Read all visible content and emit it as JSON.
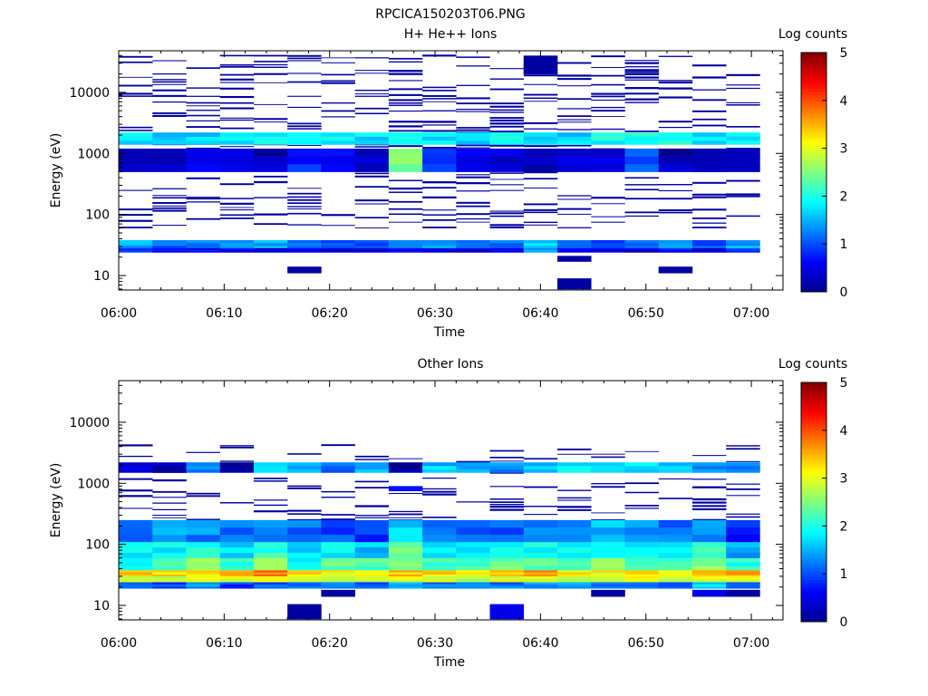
{
  "figure_title": "RPCICA150203T06.PNG",
  "colors": {
    "jet": [
      "#00008f",
      "#0000ff",
      "#0080ff",
      "#00ffff",
      "#80ff80",
      "#ffff00",
      "#ff8000",
      "#ff0000",
      "#800000"
    ]
  },
  "chart_data": [
    {
      "type": "heatmap",
      "title": "H+ He++ Ions",
      "xlabel": "Time",
      "ylabel": "Energy (eV)",
      "x_ticks": [
        "06:00",
        "06:10",
        "06:20",
        "06:30",
        "06:40",
        "06:50",
        "07:00"
      ],
      "x_range_minutes": [
        0,
        63
      ],
      "y_scale": "log",
      "y_range_eV": [
        5.8,
        48000
      ],
      "y_ticks": [
        {
          "value": 10,
          "label": "10"
        },
        {
          "value": 100,
          "label": "100"
        },
        {
          "value": 1000,
          "label": "1000"
        },
        {
          "value": 10000,
          "label": "10000"
        }
      ],
      "colorbar": {
        "label": "Log counts",
        "range": [
          0,
          5
        ],
        "ticks": [
          "0",
          "1",
          "2",
          "3",
          "4",
          "5"
        ]
      },
      "time_bins_minutes": [
        0,
        3.2,
        6.4,
        9.6,
        12.8,
        16,
        19.2,
        22.4,
        25.6,
        28.8,
        32,
        35.2,
        38.4,
        41.6,
        44.8,
        48,
        51.2,
        54.4,
        57.6,
        60.8
      ],
      "bands": [
        {
          "e_lo": 28,
          "e_hi": 38,
          "values": [
            1.4,
            1.1,
            1.2,
            1.3,
            1.5,
            1.3,
            0.9,
            1.0,
            1.2,
            1.3,
            1.1,
            1.2,
            1.6,
            1.1,
            1.0,
            1.2,
            1.3,
            1.1,
            1.4
          ]
        },
        {
          "e_lo": 24,
          "e_hi": 28,
          "values": [
            1.0,
            0.8,
            0.6,
            0.5,
            0.4,
            0.6,
            0.5,
            0.4,
            0.6,
            0.5,
            0.4,
            0.6,
            1.5,
            0.6,
            0.5,
            0.4,
            0.6,
            0.5,
            0.8
          ]
        },
        {
          "e_lo": 1400,
          "e_hi": 2200,
          "values": [
            1.8,
            1.5,
            1.6,
            1.7,
            1.8,
            1.9,
            1.8,
            1.7,
            1.9,
            1.8,
            1.7,
            1.9,
            1.8,
            1.7,
            1.9,
            2.0,
            2.1,
            1.8,
            1.7
          ]
        },
        {
          "e_lo": 500,
          "e_hi": 1200,
          "values": [
            0.4,
            0.3,
            0.5,
            0.6,
            0.3,
            0.8,
            0.5,
            0.2,
            2.6,
            0.9,
            0.4,
            0.3,
            0.2,
            0.4,
            0.3,
            1.0,
            0.2,
            0.3,
            0.4
          ]
        }
      ],
      "sparse_lines": {
        "e_lo": 60,
        "e_hi": 40000,
        "level": 0.1,
        "density": 0.35
      },
      "extra_blocks": [
        {
          "bin": 5,
          "e_lo": 11,
          "e_hi": 14,
          "value": 0.1
        },
        {
          "bin": 13,
          "e_lo": 6,
          "e_hi": 9,
          "value": 0.1
        },
        {
          "bin": 13,
          "e_lo": 17,
          "e_hi": 21,
          "value": 0.1
        },
        {
          "bin": 16,
          "e_lo": 11,
          "e_hi": 14,
          "value": 0.1
        },
        {
          "bin": 12,
          "e_lo": 20000,
          "e_hi": 40000,
          "value": 0.1
        }
      ]
    },
    {
      "type": "heatmap",
      "title": "Other Ions",
      "xlabel": "Time",
      "ylabel": "Energy (eV)",
      "x_ticks": [
        "06:00",
        "06:10",
        "06:20",
        "06:30",
        "06:40",
        "06:50",
        "07:00"
      ],
      "x_range_minutes": [
        0,
        63
      ],
      "y_scale": "log",
      "y_range_eV": [
        5.8,
        48000
      ],
      "y_ticks": [
        {
          "value": 10,
          "label": "10"
        },
        {
          "value": 100,
          "label": "100"
        },
        {
          "value": 1000,
          "label": "1000"
        },
        {
          "value": 10000,
          "label": "10000"
        }
      ],
      "colorbar": {
        "label": "Log counts",
        "range": [
          0,
          5
        ],
        "ticks": [
          "0",
          "1",
          "2",
          "3",
          "4",
          "5"
        ]
      },
      "time_bins_minutes": [
        0,
        3.2,
        6.4,
        9.6,
        12.8,
        16,
        19.2,
        22.4,
        25.6,
        28.8,
        32,
        35.2,
        38.4,
        41.6,
        44.8,
        48,
        51.2,
        54.4,
        57.6,
        60.8
      ],
      "bands": [
        {
          "e_lo": 30,
          "e_hi": 38,
          "values": [
            3.5,
            3.3,
            3.2,
            3.4,
            3.8,
            3.3,
            3.1,
            3.2,
            3.4,
            3.3,
            3.2,
            3.5,
            3.6,
            3.2,
            3.1,
            3.3,
            3.2,
            3.4,
            3.5
          ]
        },
        {
          "e_lo": 24,
          "e_hi": 30,
          "values": [
            3.0,
            2.9,
            2.8,
            2.9,
            3.1,
            3.0,
            2.9,
            2.8,
            3.0,
            2.9,
            2.8,
            3.1,
            3.0,
            2.8,
            2.9,
            3.0,
            2.8,
            2.9,
            3.0
          ]
        },
        {
          "e_lo": 38,
          "e_hi": 60,
          "values": [
            2.0,
            2.3,
            2.8,
            2.2,
            2.5,
            2.0,
            2.4,
            2.3,
            2.6,
            2.1,
            2.2,
            2.4,
            2.3,
            2.2,
            2.5,
            2.4,
            2.3,
            2.5,
            2.0
          ]
        },
        {
          "e_lo": 60,
          "e_hi": 110,
          "values": [
            1.8,
            1.9,
            2.0,
            1.7,
            2.1,
            1.8,
            1.9,
            1.6,
            2.3,
            1.9,
            1.8,
            2.0,
            1.9,
            1.8,
            2.0,
            1.9,
            1.8,
            2.1,
            1.4
          ]
        },
        {
          "e_lo": 110,
          "e_hi": 250,
          "values": [
            1.2,
            1.4,
            1.3,
            1.2,
            1.4,
            1.1,
            1.0,
            0.9,
            1.6,
            1.3,
            1.2,
            1.0,
            1.3,
            1.4,
            1.5,
            1.3,
            1.2,
            1.4,
            0.8
          ]
        },
        {
          "e_lo": 19,
          "e_hi": 24,
          "values": [
            1.2,
            1.0,
            1.3,
            0.9,
            1.1,
            1.2,
            1.3,
            1.0,
            1.4,
            1.2,
            1.3,
            1.2,
            1.3,
            1.4,
            1.1,
            1.0,
            1.2,
            1.8,
            1.1
          ]
        },
        {
          "e_lo": 1500,
          "e_hi": 2200,
          "values": [
            0.3,
            0.2,
            1.2,
            0.1,
            1.6,
            1.5,
            1.2,
            1.6,
            0.0,
            1.6,
            1.4,
            1.3,
            1.5,
            1.7,
            1.6,
            1.8,
            1.5,
            1.4,
            1.3
          ]
        }
      ],
      "sparse_lines": {
        "e_lo": 250,
        "e_hi": 4200,
        "level": 0.1,
        "density": 0.25
      },
      "extra_blocks": [
        {
          "bin": 5,
          "e_lo": 6,
          "e_hi": 10.5,
          "value": 0.1
        },
        {
          "bin": 6,
          "e_lo": 14,
          "e_hi": 18,
          "value": 0.1
        },
        {
          "bin": 11,
          "e_lo": 6,
          "e_hi": 10.5,
          "value": 0.5
        },
        {
          "bin": 8,
          "e_lo": 750,
          "e_hi": 900,
          "value": 0.7
        },
        {
          "bin": 14,
          "e_lo": 14,
          "e_hi": 18,
          "value": 0.1
        },
        {
          "bin": 17,
          "e_lo": 14,
          "e_hi": 18,
          "value": 0.5
        },
        {
          "bin": 18,
          "e_lo": 14,
          "e_hi": 18,
          "value": 0.1
        }
      ]
    }
  ]
}
